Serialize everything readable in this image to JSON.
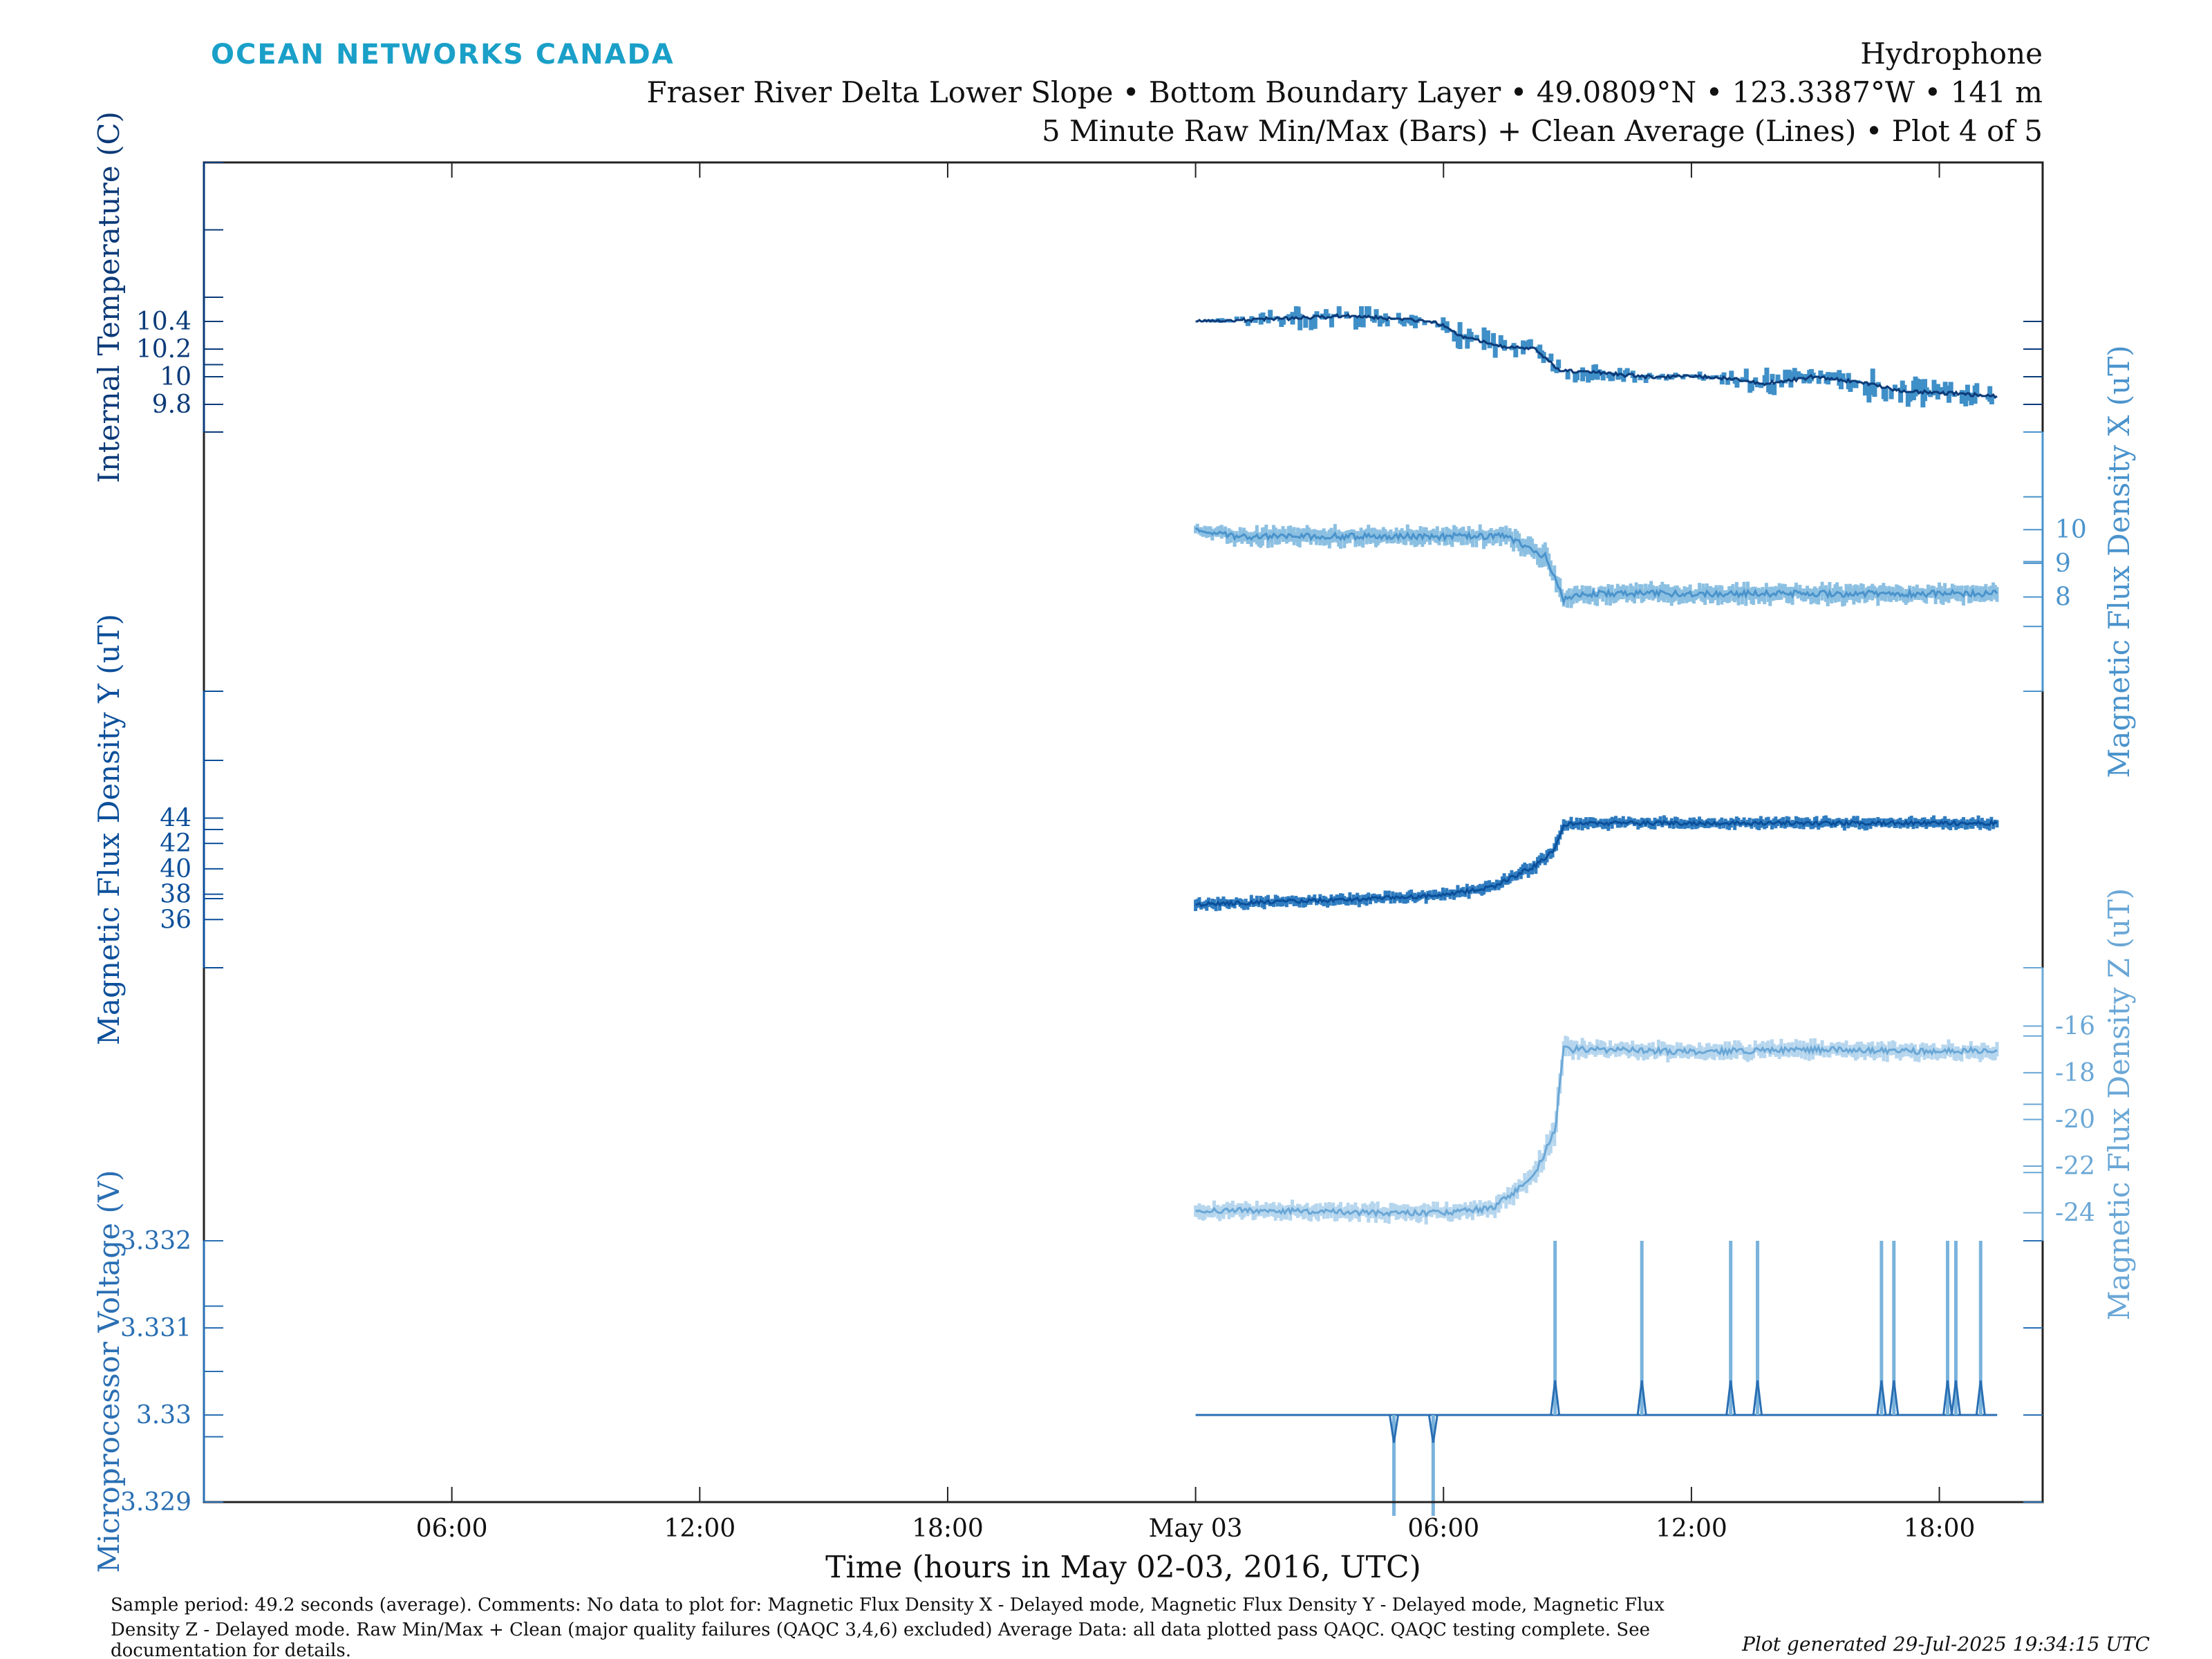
{
  "header": {
    "logo": "OCEAN NETWORKS CANADA",
    "title": "Hydrophone",
    "subtitle": "Fraser River Delta Lower Slope • Bottom Boundary Layer • 49.0809°N • 123.3387°W • 141 m",
    "plot_info": "5 Minute Raw Min/Max (Bars) + Clean Average (Lines) • Plot 4 of 5"
  },
  "footer": {
    "note_line1": "Sample period: 49.2 seconds (average). Comments: No data to plot for: Magnetic Flux Density X - Delayed mode, Magnetic Flux Density Y - Delayed mode, Magnetic Flux",
    "note_line2": "Density Z - Delayed mode. Raw Min/Max + Clean (major quality failures (QAQC 3,4,6) excluded) Average Data: all data plotted pass QAQC. QAQC testing complete. See",
    "note_line3": "documentation for details.",
    "generated": "Plot generated 29-Jul-2025 19:34:15 UTC"
  },
  "colors": {
    "temperature": "#0b3a78",
    "temperature_bar": "#3f8fc8",
    "flux_x_line": "#4a93cc",
    "flux_x_bar": "#8cc0e2",
    "flux_y_line": "#0b4f9a",
    "flux_y_bar": "#2f7cc0",
    "flux_z_line": "#6aa7d6",
    "flux_z_bar": "#b6d6ee",
    "voltage_line": "#2a6fb3",
    "voltage_bar": "#7ab3dc",
    "axis": "#222222",
    "logo": "#1aa0c8"
  },
  "chart_data": {
    "type": "line",
    "xlabel": "Time (hours in May 02-03, 2016, UTC)",
    "x_tick_labels": [
      "06:00",
      "12:00",
      "18:00",
      "May 03",
      "06:00",
      "12:00",
      "18:00"
    ],
    "x_tick_hours": [
      6,
      12,
      18,
      24,
      30,
      36,
      42
    ],
    "xlim_hours": [
      0,
      44.5
    ],
    "data_start_hour": 24.0,
    "data_end_hour": 43.4,
    "grid": false,
    "legend": "none",
    "series": [
      {
        "key": "temperature",
        "name": "Internal Temperature (C)",
        "axis_side": "left",
        "ylim": [
          9.6,
          11.55
        ],
        "ticks": [
          9.8,
          10,
          10.2,
          10.4
        ],
        "tick_labels": [
          "9.8",
          "10",
          "10.2",
          "10.4"
        ],
        "x": [
          24,
          26,
          27.8,
          29.8,
          30.4,
          31.2,
          32.2,
          32.8,
          35,
          36.5,
          37.8,
          39,
          40.3,
          41,
          43.4
        ],
        "y": [
          10.4,
          10.42,
          10.44,
          10.4,
          10.3,
          10.23,
          10.2,
          10.05,
          10,
          10,
          9.95,
          10,
          9.95,
          9.9,
          9.86
        ],
        "bar_width": [
          0.0,
          0.05,
          0.08,
          0.02,
          0.07,
          0.06,
          0.04,
          0.07,
          0.02,
          0.02,
          0.08,
          0.03,
          0.08,
          0.07,
          0.05
        ],
        "y_top_limit": 10.51
      },
      {
        "key": "flux_x",
        "name": "Magnetic Flux Density X (uT)",
        "axis_side": "right",
        "ylim": [
          5.2,
          12.9
        ],
        "ticks": [
          8,
          9,
          10
        ],
        "tick_labels": [
          "8",
          "9",
          "10"
        ],
        "x": [
          24,
          25,
          26,
          28,
          30,
          31.5,
          32.5,
          32.9,
          33.5,
          36,
          39,
          42,
          43.4
        ],
        "y": [
          10.0,
          9.8,
          9.8,
          9.8,
          9.8,
          9.8,
          9.2,
          7.9,
          8.1,
          8.1,
          8.1,
          8.1,
          8.1
        ],
        "bar_width": [
          0.15,
          0.3,
          0.3,
          0.3,
          0.3,
          0.3,
          0.4,
          0.3,
          0.3,
          0.3,
          0.3,
          0.3,
          0.3
        ]
      },
      {
        "key": "flux_y",
        "name": "Magnetic Flux Density Y (uT)",
        "axis_side": "left",
        "ylim": [
          32.2,
          54.0
        ],
        "ticks": [
          36,
          38,
          40,
          42,
          44
        ],
        "tick_labels": [
          "36",
          "38",
          "40",
          "42",
          "44"
        ],
        "x": [
          24,
          26,
          28,
          30,
          31.2,
          32.2,
          32.7,
          32.9,
          33.5,
          36,
          39,
          42,
          43.4
        ],
        "y": [
          37.2,
          37.4,
          37.6,
          37.9,
          38.6,
          40.2,
          41.5,
          43.5,
          43.6,
          43.6,
          43.6,
          43.6,
          43.6
        ],
        "bar_width": [
          0.5,
          0.5,
          0.5,
          0.5,
          0.5,
          0.6,
          0.6,
          0.5,
          0.5,
          0.5,
          0.5,
          0.5,
          0.5
        ]
      },
      {
        "key": "flux_z",
        "name": "Magnetic Flux Density Z (uT)",
        "axis_side": "right",
        "ylim": [
          -25.2,
          -13.5
        ],
        "ticks": [
          -24,
          -22,
          -20,
          -18,
          -16
        ],
        "tick_labels": [
          "-24",
          "-22",
          "-20",
          "-18",
          "-16"
        ],
        "x": [
          24,
          26,
          28,
          30,
          31.2,
          32.2,
          32.7,
          32.9,
          33.5,
          36,
          39,
          42,
          43.4
        ],
        "y": [
          -23.9,
          -23.9,
          -24.0,
          -24.0,
          -23.8,
          -22.4,
          -20.5,
          -17.0,
          -17.0,
          -17.1,
          -17.0,
          -17.1,
          -17.0
        ],
        "bar_width": [
          0.4,
          0.4,
          0.4,
          0.4,
          0.4,
          0.5,
          0.6,
          0.5,
          0.4,
          0.4,
          0.4,
          0.4,
          0.4
        ]
      },
      {
        "key": "voltage",
        "name": "Microprocessor Voltage (V)",
        "axis_side": "left",
        "ylim": [
          3.329,
          3.332
        ],
        "ticks": [
          3.329,
          3.33,
          3.331,
          3.332
        ],
        "tick_labels": [
          "3.329",
          "3.33",
          "3.331",
          "3.332"
        ],
        "baseline": 3.33,
        "x": [
          24,
          43.4
        ],
        "y": [
          3.33,
          3.33
        ],
        "spikes_up_hours": [
          32.7,
          34.8,
          36.95,
          37.6,
          40.6,
          40.9,
          42.2,
          42.4,
          43.0
        ],
        "spikes_down_hours": [
          28.8,
          29.75
        ],
        "spike_up_max": 3.332,
        "spike_down_min": 3.329
      }
    ]
  }
}
